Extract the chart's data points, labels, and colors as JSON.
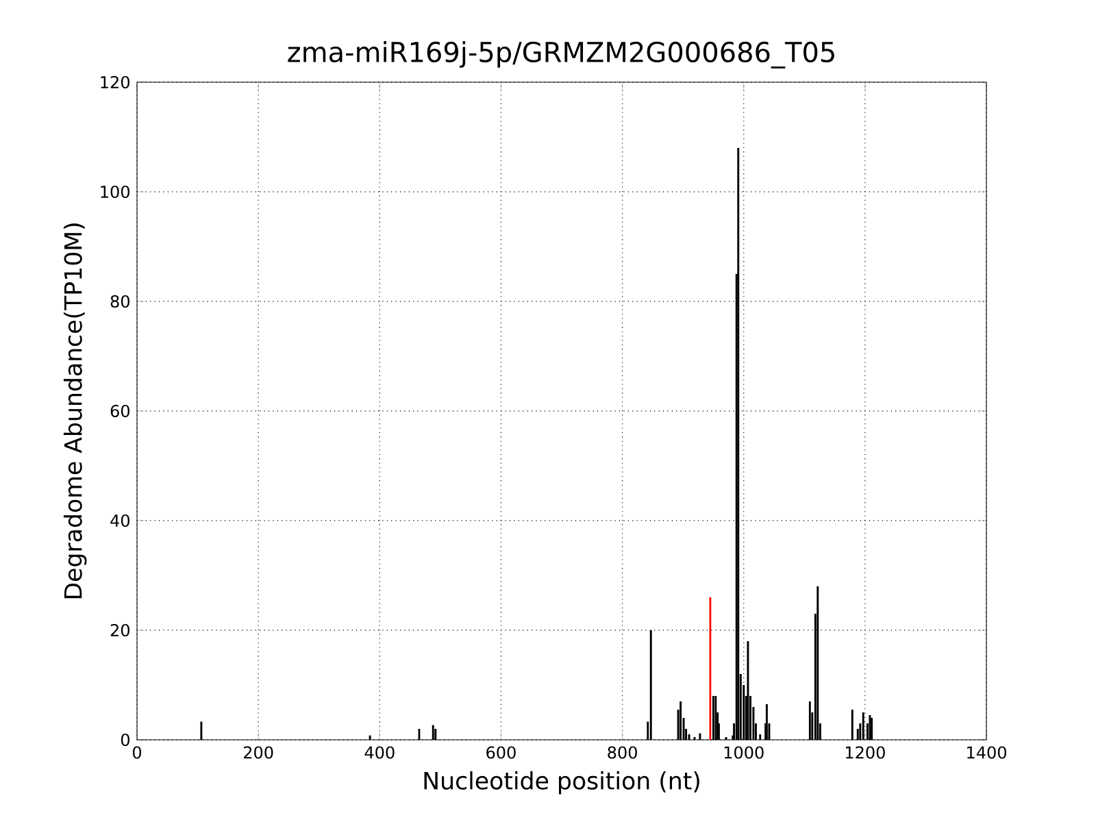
{
  "chart_data": {
    "type": "bar",
    "title": "zma-miR169j-5p/GRMZM2G000686_T05",
    "xlabel": "Nucleotide position (nt)",
    "ylabel": "Degradome Abundance(TP10M)",
    "xlim": [
      0,
      1400
    ],
    "ylim": [
      0,
      120
    ],
    "xticks": [
      0,
      200,
      400,
      600,
      800,
      1000,
      1200,
      1400
    ],
    "yticks": [
      0,
      20,
      40,
      60,
      80,
      100,
      120
    ],
    "grid": true,
    "x": [
      106,
      384,
      465,
      488,
      492,
      842,
      847,
      892,
      896,
      901,
      905,
      910,
      919,
      928,
      945,
      950,
      954,
      957,
      959,
      971,
      982,
      984,
      988,
      991,
      995,
      1000,
      1004,
      1007,
      1011,
      1016,
      1020,
      1027,
      1036,
      1038,
      1042,
      1109,
      1113,
      1118,
      1122,
      1126,
      1179,
      1188,
      1192,
      1197,
      1204,
      1208,
      1211
    ],
    "values": [
      3.3,
      0.8,
      2,
      2.7,
      2,
      3.3,
      20,
      5.5,
      7,
      4,
      2,
      1,
      0.5,
      1.2,
      26,
      8,
      8,
      5,
      3,
      0.5,
      0.8,
      3,
      85,
      108,
      12,
      10,
      8,
      18,
      8,
      6,
      3,
      1,
      3,
      6.5,
      3,
      7,
      5,
      23,
      28,
      3,
      5.5,
      2,
      3,
      5,
      3,
      4.5,
      4
    ],
    "colors": [
      "#000000",
      "#000000",
      "#000000",
      "#000000",
      "#000000",
      "#000000",
      "#000000",
      "#000000",
      "#000000",
      "#000000",
      "#000000",
      "#000000",
      "#000000",
      "#000000",
      "#ff0000",
      "#000000",
      "#000000",
      "#000000",
      "#000000",
      "#000000",
      "#000000",
      "#000000",
      "#000000",
      "#000000",
      "#000000",
      "#000000",
      "#000000",
      "#000000",
      "#000000",
      "#000000",
      "#000000",
      "#000000",
      "#000000",
      "#000000",
      "#000000",
      "#000000",
      "#000000",
      "#000000",
      "#000000",
      "#000000",
      "#000000",
      "#000000",
      "#000000",
      "#000000",
      "#000000",
      "#000000",
      "#000000"
    ]
  }
}
